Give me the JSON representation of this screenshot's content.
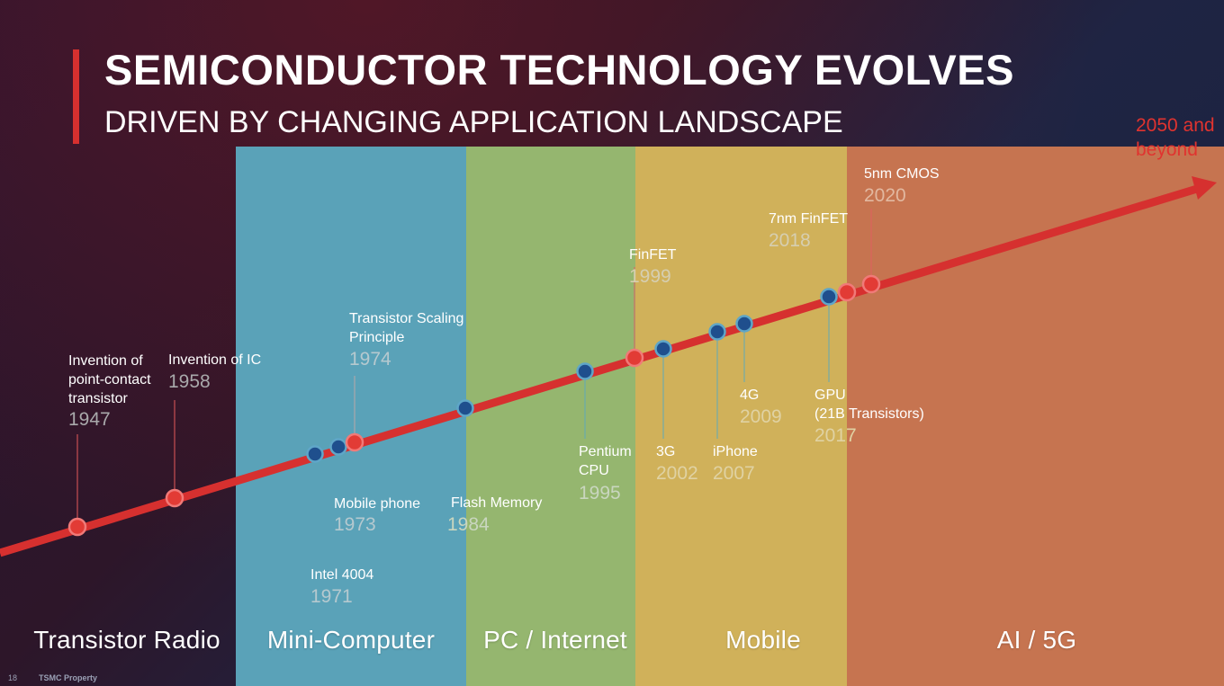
{
  "title": "SEMICONDUCTOR TECHNOLOGY EVOLVES",
  "subtitle": "DRIVEN BY CHANGING APPLICATION LANDSCAPE",
  "future_label": [
    "2050 and",
    "beyond"
  ],
  "eras": [
    {
      "label": "Transistor Radio",
      "color": "#1e2848"
    },
    {
      "label": "Mini-Computer",
      "color": "#5aa2b8"
    },
    {
      "label": "PC / Internet",
      "color": "#95b66f"
    },
    {
      "label": "Mobile",
      "color": "#d0b15a"
    },
    {
      "label": "AI / 5G",
      "color": "#c67450"
    }
  ],
  "milestones": [
    {
      "name": "Invention of point-contact transistor",
      "lines": [
        "Invention of",
        "point-contact",
        "transistor"
      ],
      "year": "1947",
      "marker": "red"
    },
    {
      "name": "Invention of IC",
      "lines": [
        "Invention of IC"
      ],
      "year": "1958",
      "marker": "red"
    },
    {
      "name": "Intel 4004",
      "lines": [
        "Intel 4004"
      ],
      "year": "1971",
      "marker": "blue"
    },
    {
      "name": "Mobile phone",
      "lines": [
        "Mobile phone"
      ],
      "year": "1973",
      "marker": "blue"
    },
    {
      "name": "Transistor Scaling Principle",
      "lines": [
        "Transistor Scaling",
        "Principle"
      ],
      "year": "1974",
      "marker": "red"
    },
    {
      "name": "Flash Memory",
      "lines": [
        "Flash Memory"
      ],
      "year": "1984",
      "marker": "blue"
    },
    {
      "name": "Pentium CPU",
      "lines": [
        "Pentium",
        "CPU"
      ],
      "year": "1995",
      "marker": "blue"
    },
    {
      "name": "FinFET",
      "lines": [
        "FinFET"
      ],
      "year": "1999",
      "marker": "red"
    },
    {
      "name": "3G",
      "lines": [
        "3G"
      ],
      "year": "2002",
      "marker": "blue"
    },
    {
      "name": "iPhone",
      "lines": [
        "iPhone"
      ],
      "year": "2007",
      "marker": "blue"
    },
    {
      "name": "4G",
      "lines": [
        "4G"
      ],
      "year": "2009",
      "marker": "blue"
    },
    {
      "name": "GPU (21B Transistors)",
      "lines": [
        "GPU",
        "(21B Transistors)"
      ],
      "year": "2017",
      "marker": "blue"
    },
    {
      "name": "7nm FinFET",
      "lines": [
        "7nm FinFET"
      ],
      "year": "2018",
      "marker": "red"
    },
    {
      "name": "5nm CMOS",
      "lines": [
        "5nm CMOS"
      ],
      "year": "2020",
      "marker": "red"
    }
  ],
  "colors": {
    "timeline": "#d6302f",
    "red_marker": "#e23b35",
    "blue_marker": "#1f4f8d",
    "year_text": "#a9a9ab"
  },
  "footer": {
    "page": "18",
    "text": "TSMC Property"
  }
}
